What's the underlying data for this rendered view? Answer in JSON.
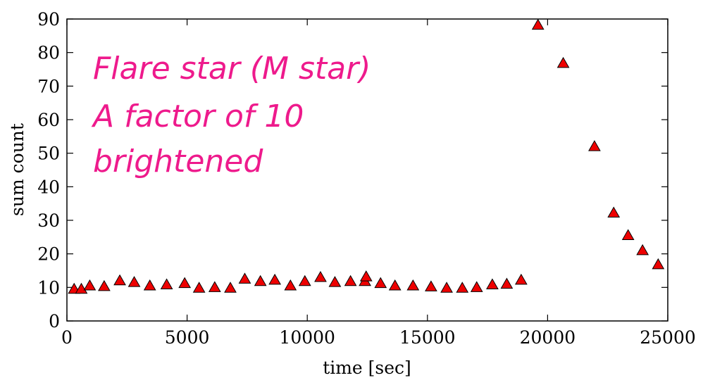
{
  "chart_data": {
    "type": "scatter",
    "title": "",
    "xlabel": "time [sec]",
    "ylabel": "sum count",
    "xlim": [
      0,
      25000
    ],
    "ylim": [
      0,
      90
    ],
    "xticks": [
      "0",
      "5000",
      "10000",
      "15000",
      "20000",
      "25000"
    ],
    "yticks": [
      "0",
      "10",
      "20",
      "30",
      "40",
      "50",
      "60",
      "70",
      "80",
      "90"
    ],
    "grid": false,
    "marker": "triangle",
    "marker_color": "#ee0000",
    "annotation": {
      "lines": [
        "Flare star (M star)",
        "A factor of 10",
        "brightened"
      ],
      "color": "#ee1a8c"
    },
    "series": [
      {
        "x": [
          300,
          600,
          950,
          1550,
          2200,
          2800,
          3450,
          4150,
          4900,
          5500,
          6150,
          6800,
          7400,
          8050,
          8650,
          9300,
          9900,
          10550,
          11150,
          11800,
          12400,
          12450,
          13050,
          13650,
          14400,
          15150,
          15800,
          16450,
          17050,
          17700,
          18300,
          18900,
          19600,
          20650,
          21950,
          22750,
          23350,
          23950,
          24600
        ],
        "y": [
          9.5,
          9.5,
          10.5,
          10.3,
          12,
          11.5,
          10.5,
          10.8,
          11.2,
          9.8,
          10.0,
          9.8,
          12.5,
          11.8,
          12.2,
          10.5,
          11.8,
          13.0,
          11.5,
          11.8,
          11.8,
          13.2,
          11.2,
          10.5,
          10.5,
          10.2,
          9.8,
          9.8,
          10.0,
          10.8,
          11.0,
          12.2,
          88.2,
          76.8,
          52.0,
          32.2,
          25.5,
          21.0,
          16.8
        ]
      }
    ]
  }
}
